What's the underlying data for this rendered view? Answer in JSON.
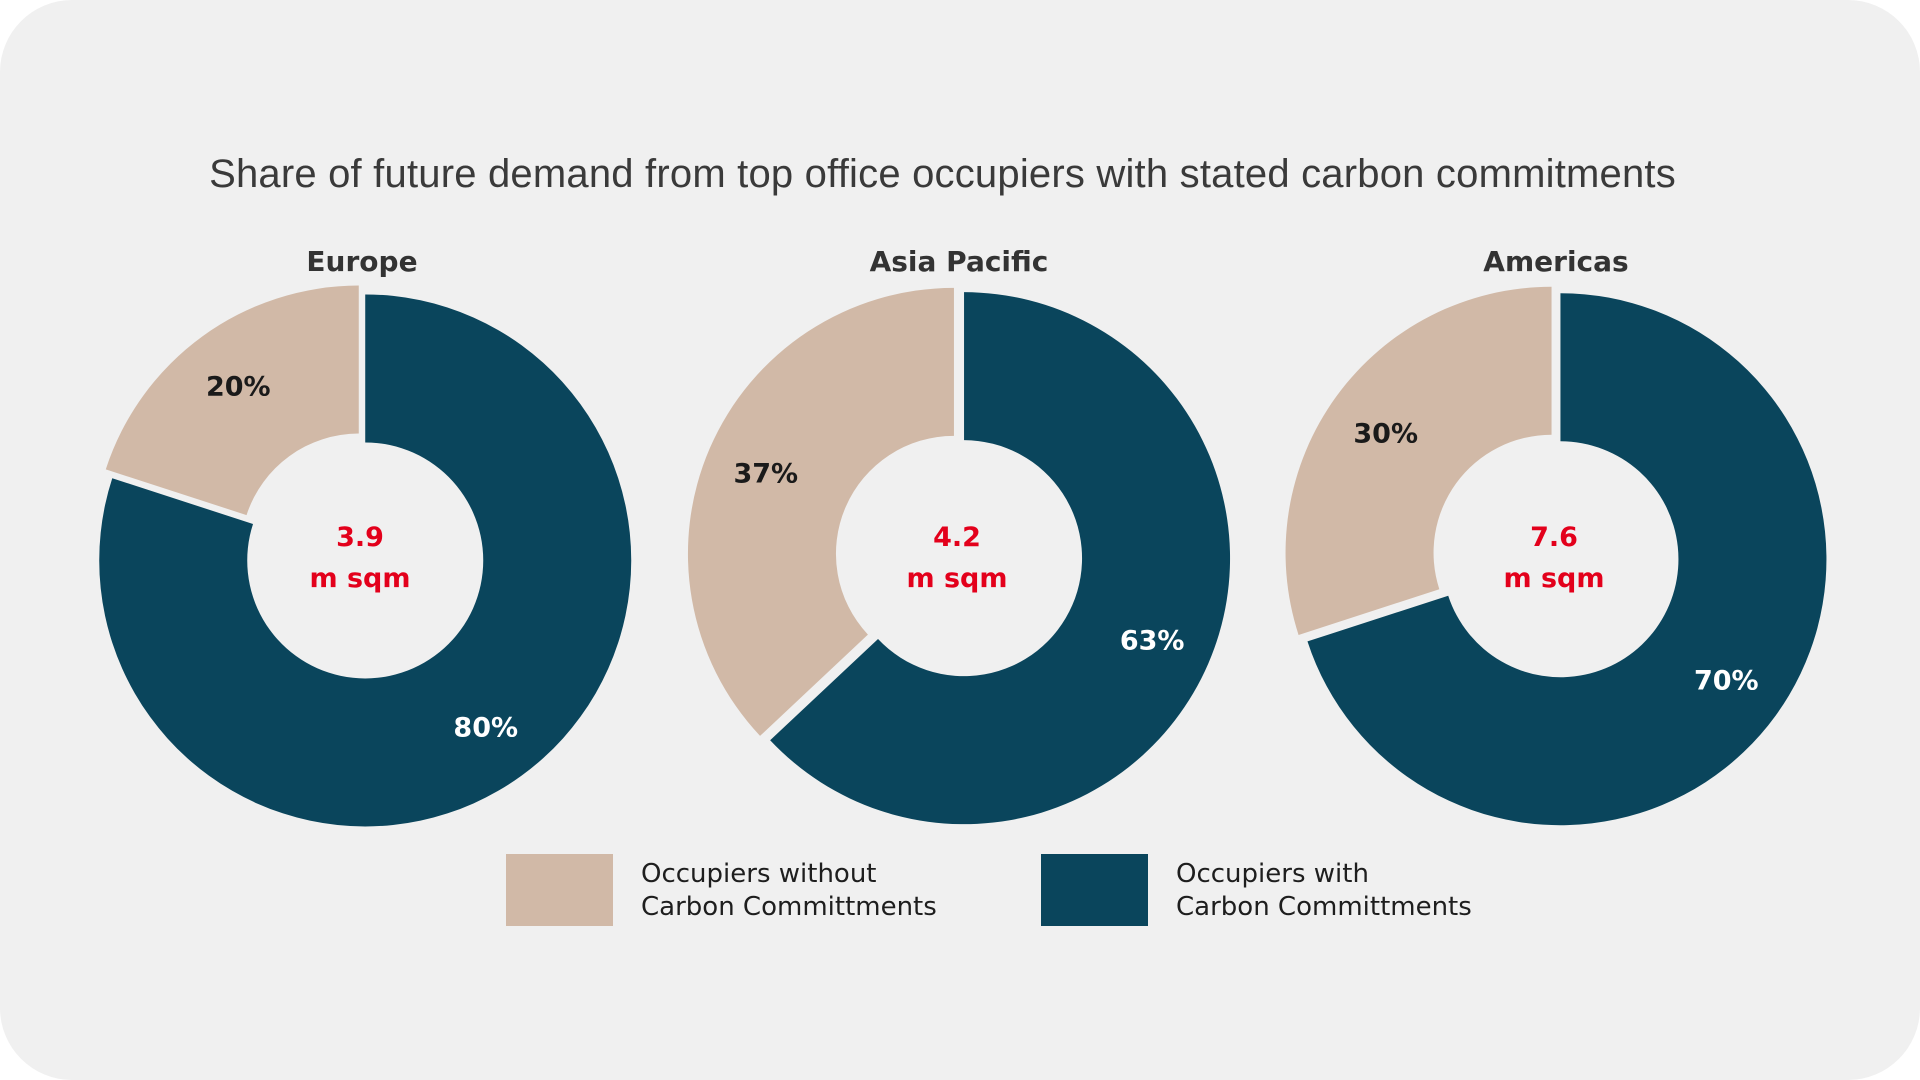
{
  "title": "Share of future demand from top office occupiers with stated carbon commitments",
  "colors": {
    "without": "#d1b9a7",
    "with": "#0a455c",
    "center_text": "#e3001b",
    "background": "#f0f0f0"
  },
  "legend": {
    "without": {
      "line1": "Occupiers without",
      "line2": "Carbon Committments"
    },
    "with": {
      "line1": "Occupiers with",
      "line2": "Carbon Committments"
    }
  },
  "chart_data": [
    {
      "type": "pie",
      "title": "Europe",
      "center_value": "3.9",
      "center_unit": "m sqm",
      "slices": [
        {
          "name": "Occupiers with Carbon Committments",
          "value": 80,
          "label": "80%"
        },
        {
          "name": "Occupiers without Carbon Committments",
          "value": 20,
          "label": "20%"
        }
      ]
    },
    {
      "type": "pie",
      "title": "Asia Pacific",
      "center_value": "4.2",
      "center_unit": "m sqm",
      "slices": [
        {
          "name": "Occupiers with Carbon Committments",
          "value": 63,
          "label": "63%"
        },
        {
          "name": "Occupiers without Carbon Committments",
          "value": 37,
          "label": "37%"
        }
      ]
    },
    {
      "type": "pie",
      "title": "Americas",
      "center_value": "7.6",
      "center_unit": "m sqm",
      "slices": [
        {
          "name": "Occupiers with Carbon Committments",
          "value": 70,
          "label": "70%"
        },
        {
          "name": "Occupiers without Carbon Committments",
          "value": 30,
          "label": "30%"
        }
      ]
    }
  ]
}
